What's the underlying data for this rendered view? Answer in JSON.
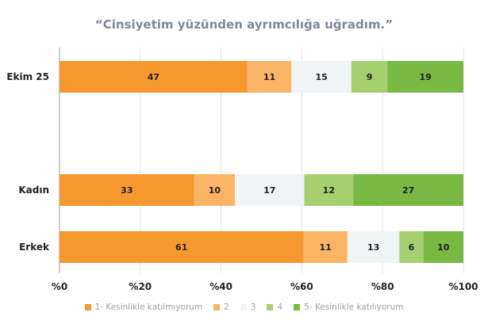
{
  "chart_data": {
    "type": "bar",
    "orientation": "horizontal-stacked",
    "title": "“Cinsiyetim yüzünden ayrımcılığa uğradım.”",
    "categories": [
      "Ekim 25",
      "Kadın",
      "Erkek"
    ],
    "series": [
      {
        "name": "1- Kesinlikle katılmıyorum",
        "color": "#f7982f",
        "values": [
          47,
          33,
          61
        ]
      },
      {
        "name": "2",
        "color": "#fab466",
        "values": [
          11,
          10,
          11
        ]
      },
      {
        "name": "3",
        "color": "#f1f4f5",
        "values": [
          15,
          17,
          13
        ]
      },
      {
        "name": "4",
        "color": "#a6d06f",
        "values": [
          9,
          12,
          6
        ]
      },
      {
        "name": "5- Kesinlikle katılıyorum",
        "color": "#77b942",
        "values": [
          19,
          27,
          10
        ]
      }
    ],
    "xlim": [
      0,
      100
    ],
    "xticks": [
      "%0",
      "%20",
      "%40",
      "%60",
      "%80",
      "%100"
    ],
    "grid": true,
    "legend": "bottom"
  }
}
